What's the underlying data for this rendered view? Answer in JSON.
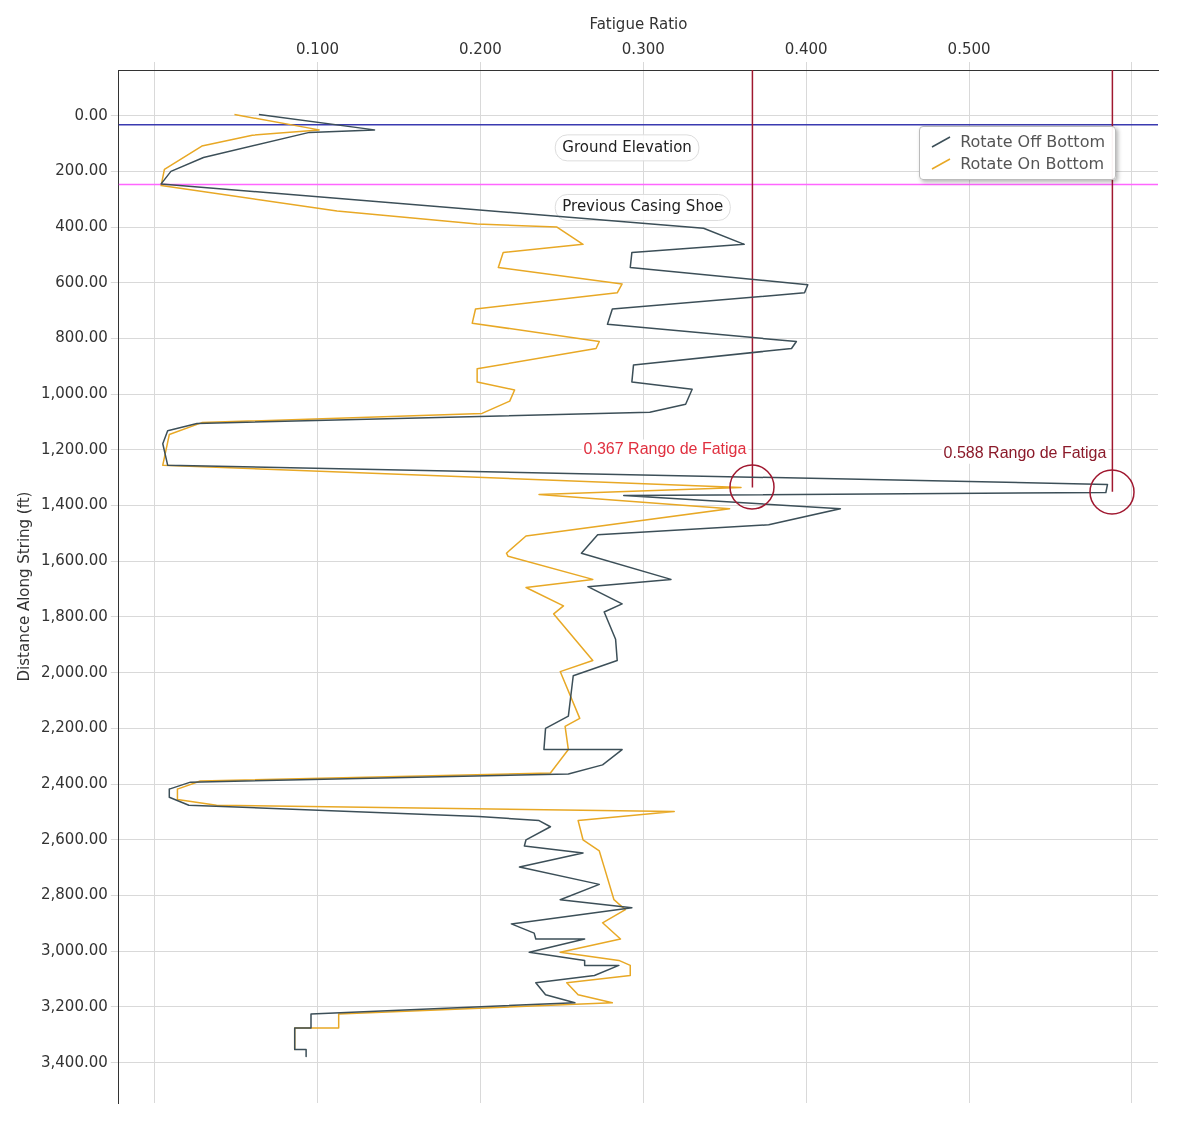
{
  "chart_data": {
    "type": "line",
    "xlabel": "Fatigue Ratio",
    "ylabel": "Distance Along String (ft)",
    "xlim": [
      -0.022,
      0.616
    ],
    "xticks": [
      {
        "value": 0,
        "label": null
      },
      {
        "value": 0.1,
        "label": "0.100"
      },
      {
        "value": 0.2,
        "label": "0.200"
      },
      {
        "value": 0.3,
        "label": "0.300"
      },
      {
        "value": 0.4,
        "label": "0.400"
      },
      {
        "value": 0.5,
        "label": "0.500"
      },
      {
        "value": 0.6,
        "label": null
      }
    ],
    "ylim": [
      3545,
      -164
    ],
    "yticks": [
      {
        "value": 0,
        "label": "0.00"
      },
      {
        "value": 200,
        "label": "200.00"
      },
      {
        "value": 400,
        "label": "400.00"
      },
      {
        "value": 600,
        "label": "600.00"
      },
      {
        "value": 800,
        "label": "800.00"
      },
      {
        "value": 1000,
        "label": "1,000.00"
      },
      {
        "value": 1200,
        "label": "1,200.00"
      },
      {
        "value": 1400,
        "label": "1,400.00"
      },
      {
        "value": 1600,
        "label": "1,600.00"
      },
      {
        "value": 1800,
        "label": "1,800.00"
      },
      {
        "value": 2000,
        "label": "2,000.00"
      },
      {
        "value": 2200,
        "label": "2,200.00"
      },
      {
        "value": 2400,
        "label": "2,400.00"
      },
      {
        "value": 2600,
        "label": "2,600.00"
      },
      {
        "value": 2800,
        "label": "2,800.00"
      },
      {
        "value": 3000,
        "label": "3,000.00"
      },
      {
        "value": 3200,
        "label": "3,200.00"
      },
      {
        "value": 3400,
        "label": "3,400.00"
      }
    ],
    "grid": true,
    "legend": "top right",
    "line_style": "solid",
    "series": [
      {
        "name": "Rotate Off Bottom",
        "color": "#3c4f58",
        "x": [
          0.064,
          0.135,
          0.095,
          0.03,
          0.01,
          0.004,
          0.337,
          0.362,
          0.293,
          0.292,
          0.401,
          0.399,
          0.281,
          0.278,
          0.394,
          0.391,
          0.294,
          0.293,
          0.33,
          0.326,
          0.304,
          0.026,
          0.008,
          0.005,
          0.008,
          0.585,
          0.584,
          0.288,
          0.421,
          0.377,
          0.272,
          0.262,
          0.317,
          0.266,
          0.287,
          0.276,
          0.283,
          0.284,
          0.257,
          0.254,
          0.24,
          0.239,
          0.287,
          0.275,
          0.254,
          0.022,
          0.009,
          0.009,
          0.021,
          0.199,
          0.236,
          0.243,
          0.228,
          0.227,
          0.263,
          0.224,
          0.273,
          0.249,
          0.293,
          0.219,
          0.233,
          0.234,
          0.264,
          0.23,
          0.264,
          0.264,
          0.285,
          0.27,
          0.234,
          0.24,
          0.258,
          0.096,
          0.096,
          0.086,
          0.086,
          0.093,
          0.093
        ],
        "values": [
          -4,
          51,
          60,
          150,
          200,
          245,
          404,
          462,
          491,
          545,
          607,
          636,
          694,
          749,
          811,
          836,
          895,
          956,
          982,
          1036,
          1065,
          1105,
          1131,
          1178,
          1255,
          1324,
          1353,
          1364,
          1411,
          1469,
          1505,
          1571,
          1665,
          1691,
          1753,
          1782,
          1880,
          1956,
          2011,
          2156,
          2200,
          2276,
          2276,
          2331,
          2364,
          2393,
          2418,
          2447,
          2476,
          2516,
          2531,
          2553,
          2600,
          2622,
          2647,
          2698,
          2760,
          2815,
          2844,
          2902,
          2935,
          2956,
          2956,
          3004,
          3033,
          3051,
          3051,
          3087,
          3113,
          3156,
          3185,
          3225,
          3276,
          3276,
          3353,
          3353,
          3378
        ]
      },
      {
        "name": "Rotate On Bottom",
        "color": "#e8a825",
        "x": [
          0.049,
          0.101,
          0.06,
          0.029,
          0.006,
          0.004,
          0.112,
          0.198,
          0.247,
          0.263,
          0.214,
          0.211,
          0.287,
          0.284,
          0.197,
          0.195,
          0.273,
          0.271,
          0.198,
          0.198,
          0.221,
          0.218,
          0.201,
          0.029,
          0.009,
          0.005,
          0.36,
          0.236,
          0.353,
          0.228,
          0.216,
          0.217,
          0.269,
          0.228,
          0.251,
          0.245,
          0.269,
          0.249,
          0.261,
          0.252,
          0.254,
          0.243,
          0.028,
          0.014,
          0.014,
          0.038,
          0.319,
          0.26,
          0.263,
          0.273,
          0.276,
          0.282,
          0.289,
          0.275,
          0.286,
          0.249,
          0.285,
          0.292,
          0.292,
          0.253,
          0.26,
          0.281,
          0.113,
          0.113,
          0.086,
          0.086
        ],
        "values": [
          -4,
          51,
          70,
          109,
          193,
          251,
          342,
          389,
          400,
          462,
          491,
          545,
          604,
          636,
          694,
          745,
          811,
          836,
          909,
          956,
          985,
          1025,
          1069,
          1102,
          1145,
          1255,
          1335,
          1360,
          1411,
          1509,
          1571,
          1582,
          1665,
          1694,
          1760,
          1789,
          1956,
          1996,
          2164,
          2193,
          2276,
          2360,
          2389,
          2418,
          2455,
          2476,
          2498,
          2531,
          2600,
          2640,
          2698,
          2815,
          2851,
          2898,
          2956,
          3004,
          3033,
          3051,
          3087,
          3113,
          3156,
          3185,
          3225,
          3276,
          3276,
          3353
        ]
      }
    ],
    "ref_lines": [
      {
        "axis": "y",
        "value": 33,
        "label": "Ground Elevation",
        "color": "#3a3ab0"
      },
      {
        "axis": "y",
        "value": 247,
        "label": "Previous Casing Shoe",
        "color": "#ff66ff"
      },
      {
        "axis": "x",
        "value": 0.367,
        "color": "#a01830"
      },
      {
        "axis": "x",
        "value": 0.588,
        "color": "#a01830"
      }
    ],
    "annotations": [
      {
        "text": "0.367 Rango de Fatiga",
        "x": 0.367,
        "y": 1335
      },
      {
        "text": "0.588 Rango de Fatiga",
        "x": 0.588,
        "y": 1350
      }
    ]
  }
}
